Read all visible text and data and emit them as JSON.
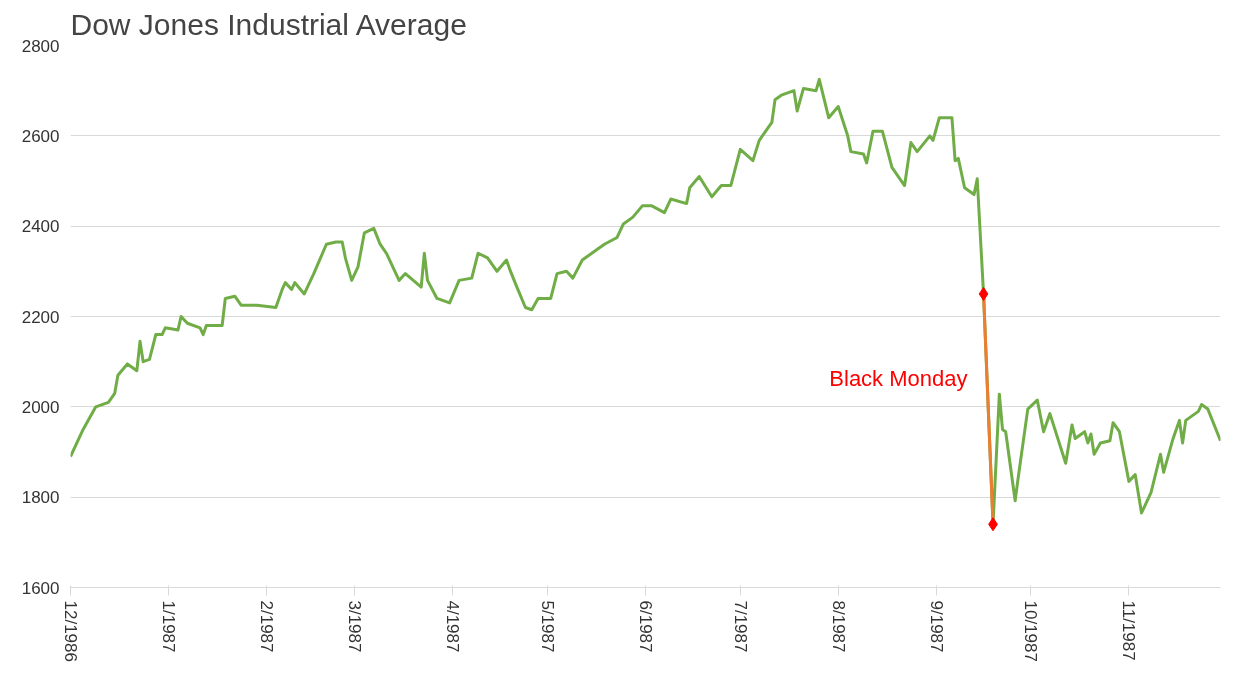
{
  "chart_data": {
    "type": "line",
    "title": "Dow Jones Industrial Average",
    "x": [
      "1986-12-01",
      "1986-12-05",
      "1986-12-09",
      "1986-12-13",
      "1986-12-15",
      "1986-12-16",
      "1986-12-19",
      "1986-12-22",
      "1986-12-23",
      "1986-12-24",
      "1986-12-26",
      "1986-12-28",
      "1986-12-30",
      "1986-12-31",
      "1987-01-04",
      "1987-01-05",
      "1987-01-07",
      "1987-01-11",
      "1987-01-12",
      "1987-01-13",
      "1987-01-18",
      "1987-01-19",
      "1987-01-22",
      "1987-01-24",
      "1987-01-29",
      "1987-02-04",
      "1987-02-06",
      "1987-02-07",
      "1987-02-09",
      "1987-02-10",
      "1987-02-13",
      "1987-02-16",
      "1987-02-20",
      "1987-02-23",
      "1987-02-25",
      "1987-02-26",
      "1987-02-28",
      "1987-03-02",
      "1987-03-04",
      "1987-03-07",
      "1987-03-09",
      "1987-03-11",
      "1987-03-15",
      "1987-03-17",
      "1987-03-22",
      "1987-03-23",
      "1987-03-24",
      "1987-03-27",
      "1987-03-31",
      "1987-04-03",
      "1987-04-07",
      "1987-04-09",
      "1987-04-12",
      "1987-04-15",
      "1987-04-18",
      "1987-04-19",
      "1987-04-21",
      "1987-04-24",
      "1987-04-26",
      "1987-04-28",
      "1987-05-02",
      "1987-05-04",
      "1987-05-07",
      "1987-05-09",
      "1987-05-12",
      "1987-05-13",
      "1987-05-16",
      "1987-05-19",
      "1987-05-23",
      "1987-05-25",
      "1987-05-28",
      "1987-05-31",
      "1987-06-03",
      "1987-06-07",
      "1987-06-09",
      "1987-06-14",
      "1987-06-15",
      "1987-06-18",
      "1987-06-22",
      "1987-06-25",
      "1987-06-28",
      "1987-07-01",
      "1987-07-05",
      "1987-07-07",
      "1987-07-11",
      "1987-07-12",
      "1987-07-14",
      "1987-07-18",
      "1987-07-19",
      "1987-07-21",
      "1987-07-25",
      "1987-07-26",
      "1987-07-29",
      "1987-08-01",
      "1987-08-04",
      "1987-08-05",
      "1987-08-09",
      "1987-08-10",
      "1987-08-12",
      "1987-08-15",
      "1987-08-18",
      "1987-08-22",
      "1987-08-24",
      "1987-08-26",
      "1987-08-30",
      "1987-08-31",
      "1987-09-02",
      "1987-09-06",
      "1987-09-07",
      "1987-09-08",
      "1987-09-10",
      "1987-09-13",
      "1987-09-14",
      "1987-09-16",
      "1987-09-19",
      "1987-09-21",
      "1987-09-22",
      "1987-09-23",
      "1987-09-26",
      "1987-09-27",
      "1987-09-30",
      "1987-10-03",
      "1987-10-05",
      "1987-10-07",
      "1987-10-12",
      "1987-10-14",
      "1987-10-15",
      "1987-10-18",
      "1987-10-19",
      "1987-10-20",
      "1987-10-21",
      "1987-10-23",
      "1987-10-26",
      "1987-10-27",
      "1987-10-29",
      "1987-11-01",
      "1987-11-03",
      "1987-11-05",
      "1987-11-08",
      "1987-11-11",
      "1987-11-12",
      "1987-11-15",
      "1987-11-17",
      "1987-11-18",
      "1987-11-19",
      "1987-11-23",
      "1987-11-24",
      "1987-11-26",
      "1987-11-30"
    ],
    "series": [
      {
        "color": "#70ad47",
        "values": [
          1890,
          1950,
          2000,
          2010,
          2030,
          2070,
          2095,
          2080,
          2145,
          2100,
          2105,
          2160,
          2160,
          2175,
          2170,
          2200,
          2185,
          2175,
          2160,
          2180,
          2180,
          2240,
          2245,
          2225,
          2225,
          2220,
          2260,
          2275,
          2260,
          2275,
          2250,
          2295,
          2360,
          2365,
          2365,
          2330,
          2280,
          2310,
          2385,
          2395,
          2360,
          2340,
          2280,
          2295,
          2265,
          2340,
          2280,
          2240,
          2230,
          2280,
          2285,
          2340,
          2330,
          2300,
          2325,
          2305,
          2270,
          2220,
          2215,
          2240,
          2240,
          2295,
          2300,
          2285,
          2325,
          2330,
          2345,
          2360,
          2375,
          2405,
          2420,
          2445,
          2445,
          2430,
          2460,
          2450,
          2485,
          2510,
          2465,
          2490,
          2490,
          2570,
          2545,
          2590,
          2630,
          2680,
          2690,
          2700,
          2655,
          2705,
          2700,
          2725,
          2640,
          2665,
          2600,
          2565,
          2560,
          2540,
          2610,
          2610,
          2530,
          2490,
          2585,
          2565,
          2600,
          2590,
          2640,
          2640,
          2545,
          2550,
          2485,
          2470,
          2505,
          2250,
          1740,
          2028,
          1950,
          1945,
          1792,
          1845,
          1995,
          2015,
          1945,
          1985,
          1875,
          1960,
          1930,
          1945,
          1920,
          1940,
          1895,
          1920,
          1925,
          1965,
          1945,
          1835,
          1850,
          1765,
          1810,
          1895,
          1855,
          1930,
          1970,
          1920,
          1970,
          1990,
          2005,
          1995,
          1925
        ]
      },
      {
        "type": "line",
        "color": "#ed7d31",
        "x": [
          "1987-09-16",
          "1987-09-19"
        ],
        "values": [
          2250,
          1740
        ]
      },
      {
        "type": "scatter",
        "marker": "diamond",
        "color": "#ff0000",
        "x": [
          "1987-09-16",
          "1987-09-19"
        ],
        "values": [
          2250,
          1740
        ]
      }
    ],
    "xlim": [
      "1986-12-01",
      "1987-11-30"
    ],
    "xticks": [
      {
        "value": "1986-12-01",
        "label": "12/1986"
      },
      {
        "value": "1987-01-01",
        "label": "1/1987"
      },
      {
        "value": "1987-02-01",
        "label": "2/1987"
      },
      {
        "value": "1987-03-01",
        "label": "3/1987"
      },
      {
        "value": "1987-04-01",
        "label": "4/1987"
      },
      {
        "value": "1987-05-01",
        "label": "5/1987"
      },
      {
        "value": "1987-06-01",
        "label": "6/1987"
      },
      {
        "value": "1987-07-01",
        "label": "7/1987"
      },
      {
        "value": "1987-08-01",
        "label": "8/1987"
      },
      {
        "value": "1987-09-01",
        "label": "9/1987"
      },
      {
        "value": "1987-10-01",
        "label": "10/1987"
      },
      {
        "value": "1987-11-01",
        "label": "11/1987"
      }
    ],
    "ylim": [
      1600,
      2800
    ],
    "yticks": [
      1600,
      1800,
      2000,
      2200,
      2400,
      2600,
      2800
    ],
    "grid": "y",
    "annotations": [
      "Black Monday"
    ]
  }
}
